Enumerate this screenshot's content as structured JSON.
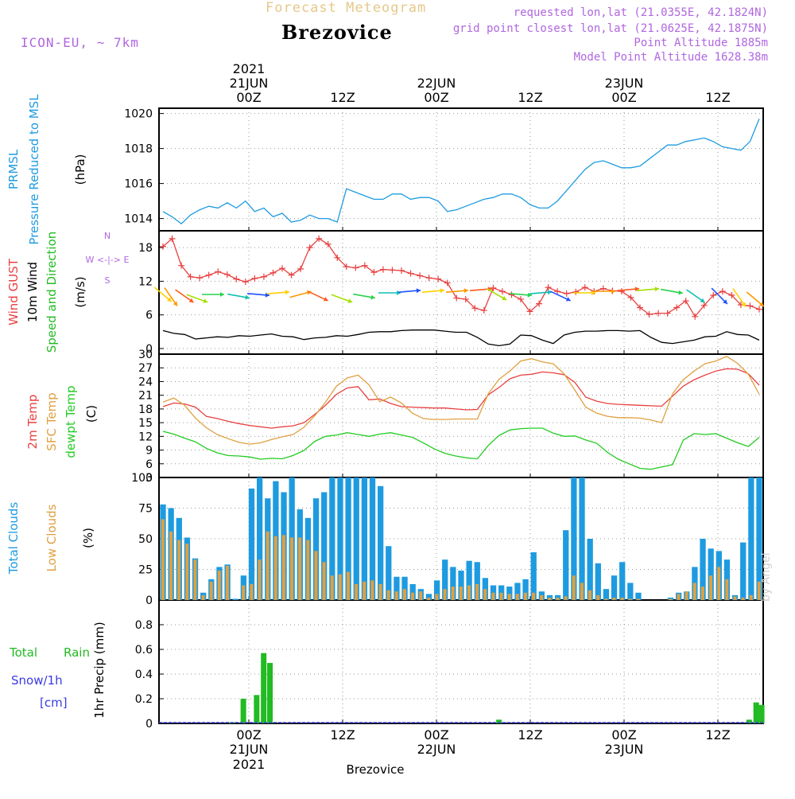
{
  "header": {
    "forecast_title": "Forecast Meteogram",
    "location": "Brezovice",
    "model": "ICON-EU, ~ 7km",
    "requested": "requested lon,lat (21.0355E, 42.1824N)",
    "grid_point": "grid point closest lon,lat (21.0625E, 42.1875N)",
    "point_altitude": "Point Altitude 1885m",
    "model_altitude": "Model Point Altitude 1628.38m",
    "signature": "by Angel",
    "bottom_label": "Brezovice"
  },
  "time_axis": {
    "year": "2021",
    "hours": 66,
    "ticks": [
      {
        "hour": 10,
        "label": "00Z",
        "date": "21JUN"
      },
      {
        "hour": 22,
        "label": "12Z",
        "date": ""
      },
      {
        "hour": 34,
        "label": "00Z",
        "date": "22JUN"
      },
      {
        "hour": 46,
        "label": "12Z",
        "date": ""
      },
      {
        "hour": 58,
        "label": "00Z",
        "date": "23JUN"
      },
      {
        "hour": 70,
        "label": "12Z",
        "date": ""
      }
    ]
  },
  "colors": {
    "pressure": "#1e9be0",
    "gust": "#e84040",
    "wind": "#000000",
    "temp2m": "#e84040",
    "sfc_temp": "#e0a040",
    "dewpoint": "#22cc22",
    "total_clouds": "#1e9be0",
    "low_clouds": "#e0a040",
    "rain": "#22bb22",
    "snow": "#3a3ae0",
    "direction": "#b066e0"
  },
  "chart_data": [
    {
      "type": "line",
      "id": "pressure",
      "ylabel_lines": [
        "PRMSL",
        "Pressure Reduced to MSL"
      ],
      "units": "(hPa)",
      "ylim": [
        1013.3,
        1020.3
      ],
      "yticks": [
        1014,
        1016,
        1018,
        1020
      ],
      "series": [
        {
          "name": "PRMSL",
          "color_key": "pressure",
          "values": [
            1014.4,
            1014.1,
            1013.7,
            1014.2,
            1014.5,
            1014.7,
            1014.6,
            1014.9,
            1014.6,
            1015.0,
            1014.4,
            1014.6,
            1014.1,
            1014.3,
            1013.8,
            1013.9,
            1014.2,
            1014.0,
            1014.0,
            1013.8,
            1015.7,
            1015.5,
            1015.3,
            1015.1,
            1015.1,
            1015.4,
            1015.4,
            1015.1,
            1015.2,
            1015.2,
            1015.0,
            1014.4,
            1014.5,
            1014.7,
            1014.9,
            1015.1,
            1015.2,
            1015.4,
            1015.4,
            1015.2,
            1014.8,
            1014.6,
            1014.6,
            1015.0,
            1015.6,
            1016.2,
            1016.8,
            1017.2,
            1017.3,
            1017.1,
            1016.9,
            1016.9,
            1017.0,
            1017.4,
            1017.8,
            1018.2,
            1018.2,
            1018.4,
            1018.5,
            1018.6,
            1018.4,
            1018.1,
            1018.0,
            1017.9,
            1018.4,
            1019.7
          ]
        }
      ]
    },
    {
      "type": "line",
      "id": "wind",
      "ylabel_lines": [
        "Wind GUST",
        "10m Wind",
        "Speed and Direction"
      ],
      "units": "(m/s)",
      "direction_legend": [
        "N",
        "W <-|-> E",
        "S"
      ],
      "ylim": [
        -1,
        21
      ],
      "yticks": [
        0,
        6,
        12,
        18
      ],
      "series": [
        {
          "name": "Wind GUST",
          "color_key": "gust",
          "marker": "+",
          "values": [
            18.2,
            19.6,
            14.8,
            12.8,
            12.6,
            13.1,
            13.7,
            13.2,
            12.4,
            11.9,
            12.5,
            12.8,
            13.5,
            14.3,
            13.1,
            14.2,
            18.0,
            19.6,
            18.6,
            16.2,
            14.6,
            14.4,
            14.8,
            13.6,
            14.1,
            14.0,
            13.9,
            13.4,
            13.0,
            12.6,
            12.4,
            11.7,
            9.0,
            8.8,
            7.2,
            6.8,
            10.8,
            10.2,
            9.6,
            8.8,
            6.6,
            8.0,
            10.9,
            10.2,
            9.8,
            10.1,
            10.9,
            10.2,
            10.7,
            10.3,
            10.2,
            9.1,
            7.3,
            6.1,
            6.3,
            6.3,
            7.3,
            8.5,
            5.7,
            7.7,
            9.5,
            10.2,
            9.5,
            7.8,
            7.6,
            7.0
          ]
        },
        {
          "name": "10m Wind",
          "color_key": "wind",
          "values": [
            3.2,
            2.7,
            2.5,
            1.7,
            1.9,
            2.1,
            2.0,
            2.3,
            2.2,
            2.4,
            2.6,
            2.2,
            2.1,
            1.6,
            1.9,
            2.0,
            2.3,
            2.2,
            2.5,
            2.9,
            3.0,
            3.0,
            3.2,
            3.3,
            3.3,
            3.3,
            3.1,
            2.9,
            2.9,
            2.0,
            0.8,
            0.5,
            0.8,
            2.4,
            2.3,
            1.5,
            0.9,
            2.4,
            2.9,
            3.1,
            3.1,
            3.2,
            3.2,
            3.1,
            3.2,
            2.0,
            1.1,
            0.9,
            1.2,
            1.5,
            2.1,
            2.2,
            3.0,
            2.5,
            2.4,
            1.5
          ]
        }
      ]
    },
    {
      "type": "line",
      "id": "temperature",
      "ylabel_lines": [
        "2m Temp",
        "SFC Temp",
        "dewpt Temp"
      ],
      "units": "(C)",
      "ylim": [
        3,
        30
      ],
      "yticks": [
        3,
        6,
        9,
        12,
        15,
        18,
        21,
        24,
        27,
        30
      ],
      "series": [
        {
          "name": "2m Temp",
          "color_key": "temp2m",
          "values": [
            18.5,
            19.3,
            19.1,
            18.4,
            16.4,
            15.9,
            15.3,
            14.8,
            14.4,
            14.1,
            13.8,
            14.1,
            14.3,
            15.0,
            16.8,
            18.8,
            21.2,
            22.6,
            22.9,
            20.0,
            20.2,
            19.2,
            18.5,
            18.4,
            18.3,
            18.2,
            18.2,
            18.0,
            17.8,
            17.9,
            21.1,
            22.7,
            24.6,
            25.4,
            25.6,
            26.1,
            25.9,
            25.5,
            23.8,
            20.6,
            19.7,
            19.2,
            19.0,
            18.9,
            18.8,
            18.7,
            18.6,
            20.8,
            23.0,
            24.4,
            25.4,
            26.3,
            26.8,
            26.7,
            25.7,
            23.2
          ]
        },
        {
          "name": "SFC Temp",
          "color_key": "sfc_temp",
          "values": [
            19.5,
            20.4,
            18.8,
            16.0,
            13.9,
            12.4,
            11.5,
            10.7,
            10.3,
            10.6,
            11.3,
            11.9,
            12.4,
            14.0,
            16.5,
            19.5,
            23.0,
            24.8,
            25.4,
            23.3,
            19.6,
            20.6,
            19.3,
            17.1,
            15.9,
            15.7,
            15.7,
            15.8,
            15.8,
            15.8,
            21.3,
            24.5,
            26.3,
            28.5,
            29.0,
            28.3,
            27.9,
            25.7,
            22.1,
            18.4,
            17.1,
            16.4,
            16.1,
            16.1,
            16.0,
            15.6,
            15.0,
            21.3,
            24.4,
            26.3,
            27.9,
            28.5,
            29.5,
            28.0,
            25.6,
            21.2
          ]
        },
        {
          "name": "dewpt Temp",
          "color_key": "dewpoint",
          "values": [
            13.1,
            12.5,
            11.6,
            10.8,
            9.4,
            8.4,
            7.8,
            7.7,
            7.5,
            7.0,
            7.2,
            7.1,
            7.8,
            8.9,
            10.9,
            12.0,
            12.3,
            12.8,
            12.4,
            12.0,
            12.5,
            12.8,
            12.3,
            11.8,
            10.6,
            9.3,
            8.3,
            7.7,
            7.3,
            7.1,
            10.0,
            12.2,
            13.4,
            13.7,
            13.8,
            13.8,
            12.7,
            12.0,
            12.1,
            11.2,
            10.5,
            8.5,
            7.0,
            6.0,
            5.0,
            4.8,
            5.3,
            5.8,
            11.2,
            12.6,
            12.4,
            12.6,
            11.6,
            10.6,
            9.8,
            11.8
          ]
        }
      ]
    },
    {
      "type": "bar",
      "id": "clouds",
      "ylabel_lines": [
        "Total Clouds",
        "Low Clouds"
      ],
      "units": "(%)",
      "ylim": [
        0,
        100
      ],
      "yticks": [
        0,
        25,
        50,
        75,
        100
      ],
      "series": [
        {
          "name": "Total Clouds",
          "color_key": "total_clouds",
          "values": [
            78,
            75,
            67,
            51,
            34,
            6,
            17,
            27,
            29,
            1,
            20,
            91,
            100,
            83,
            97,
            88,
            100,
            74,
            67,
            83,
            88,
            100,
            100,
            100,
            100,
            100,
            100,
            93,
            44,
            19,
            19,
            13,
            9,
            5,
            16,
            33,
            27,
            24,
            32,
            31,
            18,
            12,
            12,
            11,
            14,
            17,
            39,
            7,
            4,
            4,
            57,
            100,
            100,
            50,
            30,
            9,
            20,
            31,
            14,
            6,
            0,
            0,
            0,
            2,
            6,
            7,
            27,
            50,
            42,
            40,
            33,
            4,
            47,
            100,
            100
          ]
        },
        {
          "name": "Low Clouds",
          "color_key": "low_clouds",
          "values": [
            66,
            56,
            49,
            46,
            33,
            4,
            15,
            24,
            28,
            0,
            12,
            13,
            33,
            56,
            52,
            53,
            51,
            51,
            49,
            40,
            31,
            20,
            21,
            23,
            13,
            15,
            16,
            13,
            8,
            7,
            9,
            6,
            7,
            2,
            5,
            9,
            11,
            11,
            12,
            13,
            9,
            6,
            6,
            5,
            5,
            6,
            6,
            4,
            2,
            2,
            3,
            20,
            14,
            8,
            4,
            1,
            2,
            2,
            1,
            1,
            0,
            0,
            0,
            1,
            5,
            7,
            14,
            11,
            20,
            27,
            17,
            3,
            2,
            4,
            15
          ]
        }
      ]
    },
    {
      "type": "bar",
      "id": "precip",
      "ylabel_lines": [
        "1hr Precip (mm)"
      ],
      "legend": [
        "Total",
        "Rain",
        "Snow/1h",
        "[cm]"
      ],
      "ylim": [
        0,
        1.0
      ],
      "yticks": [
        0,
        0.2,
        0.4,
        0.6,
        0.8
      ],
      "series": [
        {
          "name": "Total",
          "color_key": "rain",
          "points": [
            [
              7.8,
              0.01
            ],
            [
              9.3,
              0.2
            ],
            [
              11.0,
              0.23
            ],
            [
              11.9,
              0.57
            ],
            [
              12.7,
              0.49
            ],
            [
              42.0,
              0.03
            ],
            [
              74.0,
              0.03
            ],
            [
              74.9,
              0.17
            ],
            [
              75.6,
              0.15
            ]
          ]
        }
      ]
    }
  ]
}
